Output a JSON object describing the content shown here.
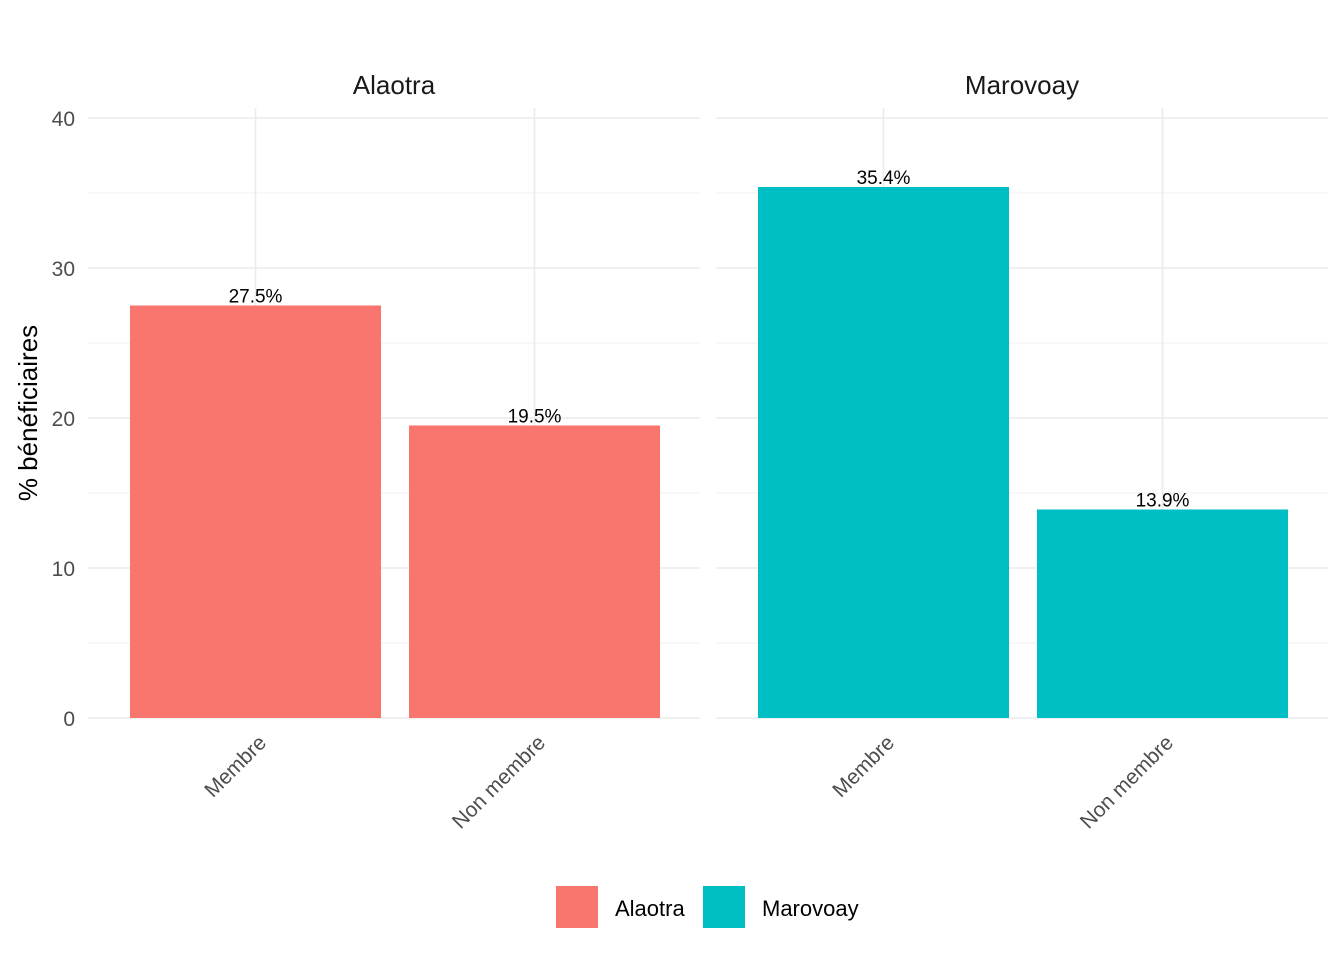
{
  "chart_data": {
    "type": "bar",
    "ylabel": "% bénéficiaires",
    "ylim": [
      0,
      40
    ],
    "yticks": [
      0,
      10,
      20,
      30,
      40
    ],
    "grid": true,
    "legend_position": "bottom",
    "categories": [
      "Membre",
      "Non membre"
    ],
    "panels": [
      {
        "title": "Alaotra",
        "color": "#F8766D",
        "values": [
          27.5,
          19.5
        ],
        "labels": [
          "27.5%",
          "19.5%"
        ]
      },
      {
        "title": "Marovoay",
        "color": "#00BFC4",
        "values": [
          35.4,
          13.9
        ],
        "labels": [
          "35.4%",
          "13.9%"
        ]
      }
    ],
    "legend": [
      {
        "label": "Alaotra",
        "color": "#F8766D"
      },
      {
        "label": "Marovoay",
        "color": "#00BFC4"
      }
    ]
  }
}
